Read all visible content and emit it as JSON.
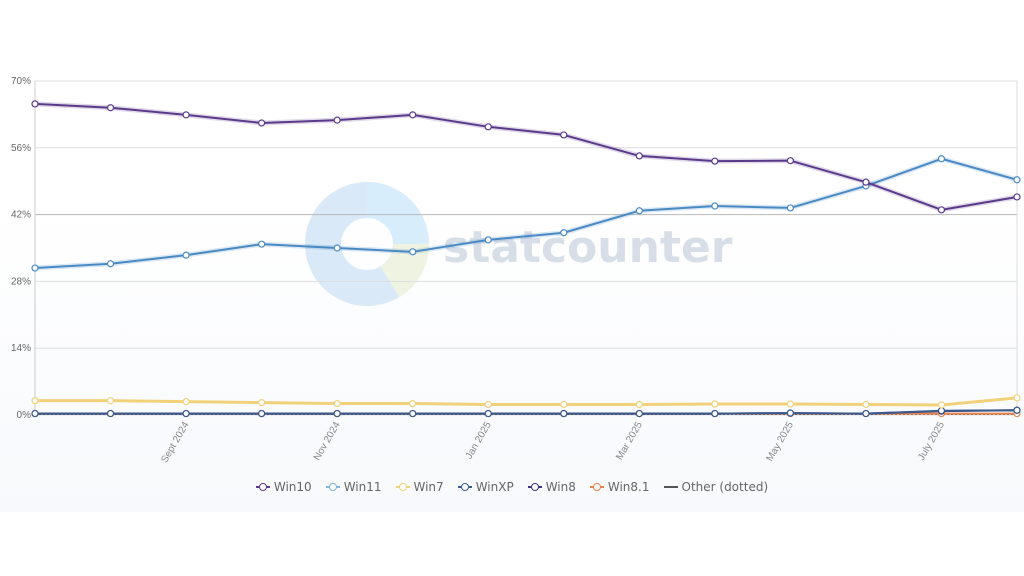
{
  "chart_data": {
    "type": "line",
    "title": "",
    "xlabel": "",
    "ylabel": "",
    "ylim": [
      0,
      70
    ],
    "yticks": [
      "0%",
      "14%",
      "28%",
      "42%",
      "56%",
      "70%"
    ],
    "x": [
      "Aug 2024",
      "Aug 2024",
      "Sept 2024",
      "Oct 2024",
      "Nov 2024",
      "Dec 2024",
      "Jan 2025",
      "Feb 2025",
      "Mar 2025",
      "Apr 2025",
      "May 2025",
      "June 2025",
      "July 2025",
      "Aug 2025"
    ],
    "xtick_labels": [
      {
        "index": 2,
        "label": "Sept 2024"
      },
      {
        "index": 4,
        "label": "Nov 2024"
      },
      {
        "index": 6,
        "label": "Jan 2025"
      },
      {
        "index": 8,
        "label": "Mar 2025"
      },
      {
        "index": 10,
        "label": "May 2025"
      },
      {
        "index": 12,
        "label": "July 2025"
      }
    ],
    "grid": true,
    "legend_position": "bottom",
    "series": [
      {
        "name": "Win10",
        "color": "#5b3a8c",
        "values": [
          65.2,
          64.4,
          62.9,
          61.2,
          61.8,
          62.9,
          60.4,
          58.7,
          54.3,
          53.2,
          53.3,
          48.8,
          43.0,
          45.7
        ]
      },
      {
        "name": "Win11",
        "color": "#4a8ac4",
        "values": [
          30.8,
          31.7,
          33.5,
          35.8,
          35.0,
          34.2,
          36.7,
          38.2,
          42.8,
          43.8,
          43.4,
          48.0,
          53.7,
          49.3
        ]
      },
      {
        "name": "Win7",
        "color": "#f1d27a",
        "values": [
          3.0,
          3.0,
          2.8,
          2.6,
          2.4,
          2.4,
          2.2,
          2.2,
          2.2,
          2.3,
          2.3,
          2.2,
          2.1,
          3.6
        ]
      },
      {
        "name": "WinXP",
        "color": "#3a5a8c",
        "values": [
          0.3,
          0.3,
          0.3,
          0.3,
          0.3,
          0.3,
          0.3,
          0.3,
          0.3,
          0.3,
          0.4,
          0.3,
          0.9,
          1.0
        ]
      },
      {
        "name": "Win8",
        "color": "#3d3580",
        "values": [
          0.3,
          0.3,
          0.3,
          0.3,
          0.3,
          0.3,
          0.3,
          0.3,
          0.3,
          0.3,
          0.4,
          0.3,
          0.8,
          1.0
        ]
      },
      {
        "name": "Win8.1",
        "color": "#e8844a",
        "values": [
          0.3,
          0.3,
          0.3,
          0.3,
          0.3,
          0.3,
          0.3,
          0.3,
          0.3,
          0.3,
          0.3,
          0.3,
          0.3,
          0.3
        ]
      },
      {
        "name": "Other (dotted)",
        "color": "#555555",
        "values": [
          0.2,
          0.2,
          0.2,
          0.2,
          0.2,
          0.2,
          0.2,
          0.2,
          0.2,
          0.2,
          0.2,
          0.2,
          0.2,
          0.2
        ]
      }
    ]
  },
  "watermark": "statcounter",
  "legend": [
    {
      "label": "Win10",
      "color": "#5b3a8c",
      "marker": "circle"
    },
    {
      "label": "Win11",
      "color": "#7fb8e0",
      "marker": "circle"
    },
    {
      "label": "Win7",
      "color": "#f1d27a",
      "marker": "circle"
    },
    {
      "label": "WinXP",
      "color": "#3a5a8c",
      "marker": "circle"
    },
    {
      "label": "Win8",
      "color": "#3d3580",
      "marker": "circle"
    },
    {
      "label": "Win8.1",
      "color": "#e8844a",
      "marker": "circle"
    },
    {
      "label": "Other (dotted)",
      "color": "#555555",
      "marker": "line"
    }
  ]
}
